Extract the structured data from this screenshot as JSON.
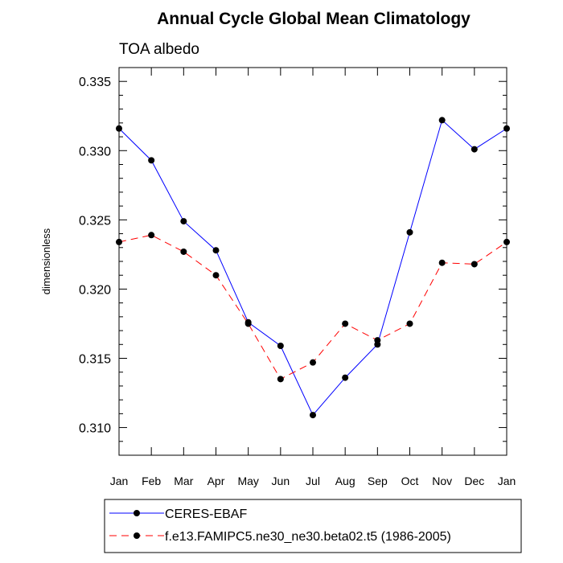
{
  "chart_data": {
    "type": "line",
    "title": "Annual Cycle Global Mean Climatology",
    "subtitle": "TOA albedo",
    "xlabel": "",
    "ylabel": "dimensionless",
    "categories": [
      "Jan",
      "Feb",
      "Mar",
      "Apr",
      "May",
      "Jun",
      "Jul",
      "Aug",
      "Sep",
      "Oct",
      "Nov",
      "Dec",
      "Jan"
    ],
    "ylim": [
      0.308,
      0.336
    ],
    "yticks": [
      0.31,
      0.315,
      0.32,
      0.325,
      0.33,
      0.335
    ],
    "ytick_labels": [
      "0.310",
      "0.315",
      "0.320",
      "0.325",
      "0.330",
      "0.335"
    ],
    "y_minor_step": 0.001,
    "grid": false,
    "legend_position": "bottom",
    "series": [
      {
        "name": "CERES-EBAF",
        "color": "#0000ff",
        "line_style": "solid",
        "marker": "filled-circle",
        "marker_color": "#000000",
        "values": [
          0.3316,
          0.3293,
          0.3249,
          0.3228,
          0.3176,
          0.3159,
          0.3109,
          0.3136,
          0.316,
          0.3241,
          0.3322,
          0.3301,
          0.3316
        ]
      },
      {
        "name": "f.e13.FAMIPC5.ne30_ne30.beta02.t5 (1986-2005)",
        "color": "#ff0000",
        "line_style": "dashed",
        "marker": "filled-circle",
        "marker_color": "#000000",
        "values": [
          0.3234,
          0.3239,
          0.3227,
          0.321,
          0.3175,
          0.3135,
          0.3147,
          0.3175,
          0.3163,
          0.3175,
          0.3219,
          0.3218,
          0.3234
        ]
      }
    ]
  }
}
